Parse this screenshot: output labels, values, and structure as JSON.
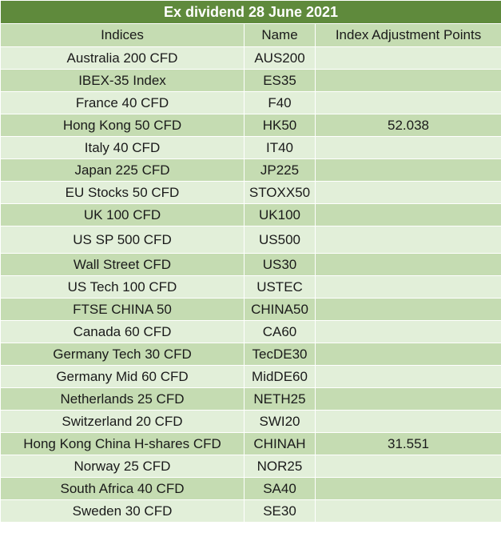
{
  "title": "Ex dividend 28 June 2021",
  "columns": [
    "Indices",
    "Name",
    "Index Adjustment Points"
  ],
  "rows": [
    [
      "Australia 200 CFD",
      "AUS200",
      ""
    ],
    [
      "IBEX-35 Index",
      "ES35",
      ""
    ],
    [
      "France 40 CFD",
      "F40",
      ""
    ],
    [
      "Hong Kong 50 CFD",
      "HK50",
      "52.038"
    ],
    [
      "Italy 40 CFD",
      "IT40",
      ""
    ],
    [
      "Japan 225 CFD",
      "JP225",
      ""
    ],
    [
      "EU Stocks 50 CFD",
      "STOXX50",
      ""
    ],
    [
      "UK 100 CFD",
      "UK100",
      ""
    ],
    [
      "US SP 500 CFD",
      "US500",
      ""
    ],
    [
      "Wall Street CFD",
      "US30",
      ""
    ],
    [
      "US Tech 100 CFD",
      "USTEC",
      ""
    ],
    [
      "FTSE CHINA 50",
      "CHINA50",
      ""
    ],
    [
      "Canada 60 CFD",
      "CA60",
      ""
    ],
    [
      "Germany Tech 30 CFD",
      "TecDE30",
      ""
    ],
    [
      "Germany Mid 60 CFD",
      "MidDE60",
      ""
    ],
    [
      "Netherlands 25 CFD",
      "NETH25",
      ""
    ],
    [
      "Switzerland 20 CFD",
      "SWI20",
      ""
    ],
    [
      "Hong Kong China H-shares CFD",
      "CHINAH",
      "31.551"
    ],
    [
      "Norway 25 CFD",
      "NOR25",
      ""
    ],
    [
      "South Africa 40 CFD",
      "SA40",
      ""
    ],
    [
      "Sweden 30 CFD",
      "SE30",
      ""
    ]
  ],
  "colors": {
    "title_bg": "#5f8a3c",
    "band_light": "#e2efd9",
    "band_dark": "#c5dcb2"
  }
}
